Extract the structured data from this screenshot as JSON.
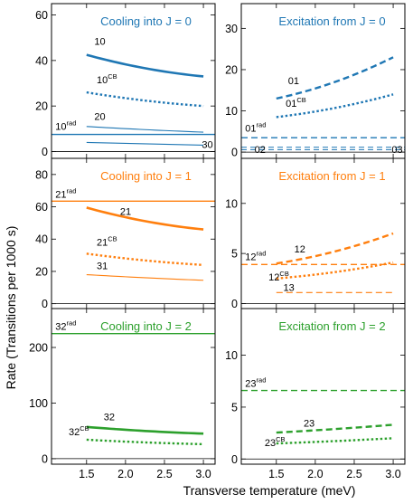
{
  "colors": {
    "J0": "#1f77b4",
    "J1": "#ff7f0e",
    "J2": "#2ca02c"
  },
  "ylabel": "Rate (Transitions per 1000 s)",
  "xlabel": "Transverse temperature (meV)",
  "x_ticks": [
    "1.5",
    "2.0",
    "2.5",
    "3.0"
  ],
  "chart_data": [
    {
      "type": "line",
      "title": "Cooling into J = 0",
      "color": "J0",
      "xlim": [
        1.05,
        3.15
      ],
      "ylim": [
        -3,
        65
      ],
      "yticks": [
        0,
        20,
        40,
        60
      ],
      "series": [
        {
          "name": "10",
          "style": "thick",
          "x": [
            1.5,
            3.0
          ],
          "y": [
            42.5,
            33
          ],
          "curve": 0.12
        },
        {
          "name": "10CB",
          "style": "dotted",
          "x": [
            1.5,
            3.0
          ],
          "y": [
            26,
            20
          ],
          "curve": 0.1
        },
        {
          "name": "20",
          "style": "thin",
          "x": [
            1.5,
            3.0
          ],
          "y": [
            11,
            8.5
          ],
          "curve": 0.05
        },
        {
          "name": "30",
          "style": "thin",
          "x": [
            1.5,
            3.0
          ],
          "y": [
            4,
            2.8
          ],
          "curve": 0.0
        },
        {
          "name": "10rad",
          "style": "hline",
          "y": 7.5
        }
      ],
      "labels": [
        {
          "base": "10",
          "sup": "",
          "x": 1.6,
          "y": 47
        },
        {
          "base": "10",
          "sup": "CB",
          "x": 1.63,
          "y": 30
        },
        {
          "base": "20",
          "sup": "",
          "x": 1.6,
          "y": 14
        },
        {
          "base": "10",
          "sup": "rad",
          "x": 1.1,
          "y": 9.5
        },
        {
          "base": "30",
          "sup": "",
          "x": 2.98,
          "y": 1.5
        }
      ]
    },
    {
      "type": "line",
      "title": "Excitation from J = 0",
      "color": "J0",
      "xlim": [
        1.05,
        3.15
      ],
      "ylim": [
        -1.5,
        36
      ],
      "yticks": [
        0,
        10,
        20,
        30
      ],
      "series": [
        {
          "name": "01",
          "style": "dashed",
          "x": [
            1.5,
            3.0
          ],
          "y": [
            13,
            23
          ],
          "curve": -0.1
        },
        {
          "name": "01CB",
          "style": "dotted",
          "x": [
            1.5,
            3.0
          ],
          "y": [
            8.5,
            14
          ],
          "curve": -0.1
        },
        {
          "name": "01rad",
          "style": "hline-dashed",
          "y": 3.5
        },
        {
          "name": "02",
          "style": "hline-dashed-thin",
          "y": 1.2
        },
        {
          "name": "03",
          "style": "hline-dashed-thin",
          "y": 0.6
        }
      ],
      "labels": [
        {
          "base": "01",
          "sup": "",
          "x": 1.65,
          "y": 16.5
        },
        {
          "base": "01",
          "sup": "CB",
          "x": 1.62,
          "y": 11
        },
        {
          "base": "01",
          "sup": "rad",
          "x": 1.1,
          "y": 5
        },
        {
          "base": "02",
          "sup": "",
          "x": 1.22,
          "y": -0.2
        },
        {
          "base": "03",
          "sup": "",
          "x": 2.98,
          "y": -0.2
        }
      ]
    },
    {
      "type": "line",
      "title": "Cooling into J = 1",
      "color": "J1",
      "xlim": [
        1.05,
        3.15
      ],
      "ylim": [
        -3,
        90
      ],
      "yticks": [
        0,
        20,
        40,
        60,
        80
      ],
      "series": [
        {
          "name": "21",
          "style": "thick",
          "x": [
            1.5,
            3.0
          ],
          "y": [
            59.5,
            46
          ],
          "curve": 0.12
        },
        {
          "name": "21CB",
          "style": "dotted",
          "x": [
            1.5,
            3.0
          ],
          "y": [
            31,
            24
          ],
          "curve": 0.1
        },
        {
          "name": "31",
          "style": "thin",
          "x": [
            1.5,
            3.0
          ],
          "y": [
            18,
            14.5
          ],
          "curve": 0.05
        },
        {
          "name": "21rad",
          "style": "hline",
          "y": 63.5
        }
      ],
      "labels": [
        {
          "base": "21",
          "sup": "rad",
          "x": 1.1,
          "y": 65.5
        },
        {
          "base": "21",
          "sup": "",
          "x": 1.93,
          "y": 55
        },
        {
          "base": "21",
          "sup": "CB",
          "x": 1.63,
          "y": 36
        },
        {
          "base": "31",
          "sup": "",
          "x": 1.63,
          "y": 21.5
        }
      ]
    },
    {
      "type": "line",
      "title": "Excitation from J = 1",
      "color": "J1",
      "xlim": [
        1.05,
        3.15
      ],
      "ylim": [
        -0.5,
        14.5
      ],
      "yticks": [
        0,
        5,
        10
      ],
      "series": [
        {
          "name": "12",
          "style": "dashed",
          "x": [
            1.5,
            3.0
          ],
          "y": [
            4.0,
            7.0
          ],
          "curve": -0.1
        },
        {
          "name": "12CB",
          "style": "dotted",
          "x": [
            1.5,
            3.0
          ],
          "y": [
            2.5,
            4.1
          ],
          "curve": -0.1
        },
        {
          "name": "12rad",
          "style": "hline-dashed",
          "y": 3.9
        },
        {
          "name": "13",
          "style": "dashed-thin",
          "x": [
            1.5,
            3.0
          ],
          "y": [
            1.1,
            1.1
          ],
          "curve": 0
        }
      ],
      "labels": [
        {
          "base": "12",
          "sup": "rad",
          "x": 1.1,
          "y": 4.35
        },
        {
          "base": "12",
          "sup": "",
          "x": 1.73,
          "y": 5.1
        },
        {
          "base": "12",
          "sup": "CB",
          "x": 1.4,
          "y": 2.3
        },
        {
          "base": "13",
          "sup": "",
          "x": 1.59,
          "y": 1.25
        }
      ]
    },
    {
      "type": "line",
      "title": "Cooling into J = 2",
      "color": "J2",
      "xlim": [
        1.05,
        3.15
      ],
      "ylim": [
        -10,
        270
      ],
      "yticks": [
        0,
        100,
        200
      ],
      "series": [
        {
          "name": "32",
          "style": "thick",
          "x": [
            1.5,
            3.0
          ],
          "y": [
            57,
            45
          ],
          "curve": 0.1
        },
        {
          "name": "32CB",
          "style": "dotted",
          "x": [
            1.5,
            3.0
          ],
          "y": [
            34,
            26
          ],
          "curve": 0.1
        },
        {
          "name": "32rad",
          "style": "hline",
          "y": 225
        }
      ],
      "labels": [
        {
          "base": "32",
          "sup": "rad",
          "x": 1.1,
          "y": 232
        },
        {
          "base": "32",
          "sup": "",
          "x": 1.72,
          "y": 69
        },
        {
          "base": "32",
          "sup": "CB",
          "x": 1.27,
          "y": 42
        }
      ]
    },
    {
      "type": "line",
      "title": "Excitation from J = 2",
      "color": "J2",
      "xlim": [
        1.05,
        3.15
      ],
      "ylim": [
        -0.5,
        14.5
      ],
      "yticks": [
        0,
        5,
        10
      ],
      "series": [
        {
          "name": "23",
          "style": "dashed",
          "x": [
            1.5,
            3.0
          ],
          "y": [
            2.55,
            3.3
          ],
          "curve": -0.05
        },
        {
          "name": "23CB",
          "style": "dotted",
          "x": [
            1.5,
            3.0
          ],
          "y": [
            1.5,
            2.0
          ],
          "curve": -0.05
        },
        {
          "name": "23rad",
          "style": "hline-dashed",
          "y": 6.6
        }
      ],
      "labels": [
        {
          "base": "23",
          "sup": "rad",
          "x": 1.1,
          "y": 6.95
        },
        {
          "base": "23",
          "sup": "",
          "x": 1.85,
          "y": 3.1
        },
        {
          "base": "23",
          "sup": "CB",
          "x": 1.35,
          "y": 1.25
        }
      ]
    }
  ]
}
